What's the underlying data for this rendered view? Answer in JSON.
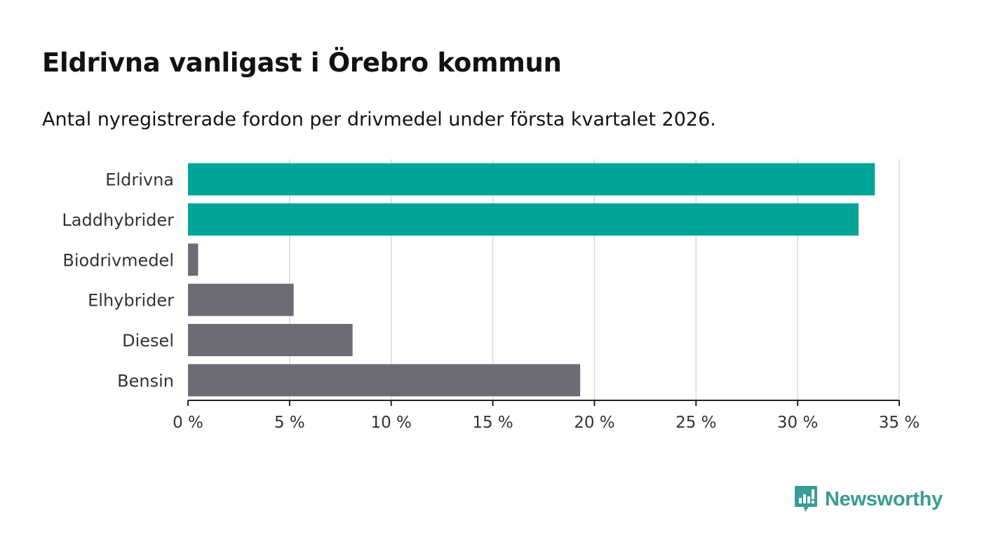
{
  "title": "Eldrivna vanligast i Örebro kommun",
  "subtitle": "Antal nyregistrerade fordon per drivmedel under första kvartalet 2026.",
  "brand": {
    "name": "Newsworthy",
    "color": "#3a9c93"
  },
  "colors": {
    "highlight": "#00a598",
    "default": "#6d6c74",
    "grid": "#d9d9d9",
    "axis": "#222222",
    "text": "#333333"
  },
  "chart_data": {
    "type": "bar",
    "orientation": "horizontal",
    "categories": [
      "Eldrivna",
      "Laddhybrider",
      "Biodrivmedel",
      "Elhybrider",
      "Diesel",
      "Bensin"
    ],
    "values": [
      33.8,
      33.0,
      0.5,
      5.2,
      8.1,
      19.3
    ],
    "highlighted": [
      true,
      true,
      false,
      false,
      false,
      false
    ],
    "x_ticks": [
      0,
      5,
      10,
      15,
      20,
      25,
      30,
      35
    ],
    "x_tick_labels": [
      "0 %",
      "5 %",
      "10 %",
      "15 %",
      "20 %",
      "25 %",
      "30 %",
      "35 %"
    ],
    "xlim": [
      0,
      35
    ],
    "xlabel": "",
    "ylabel": "",
    "unit": "%",
    "grid": true
  }
}
